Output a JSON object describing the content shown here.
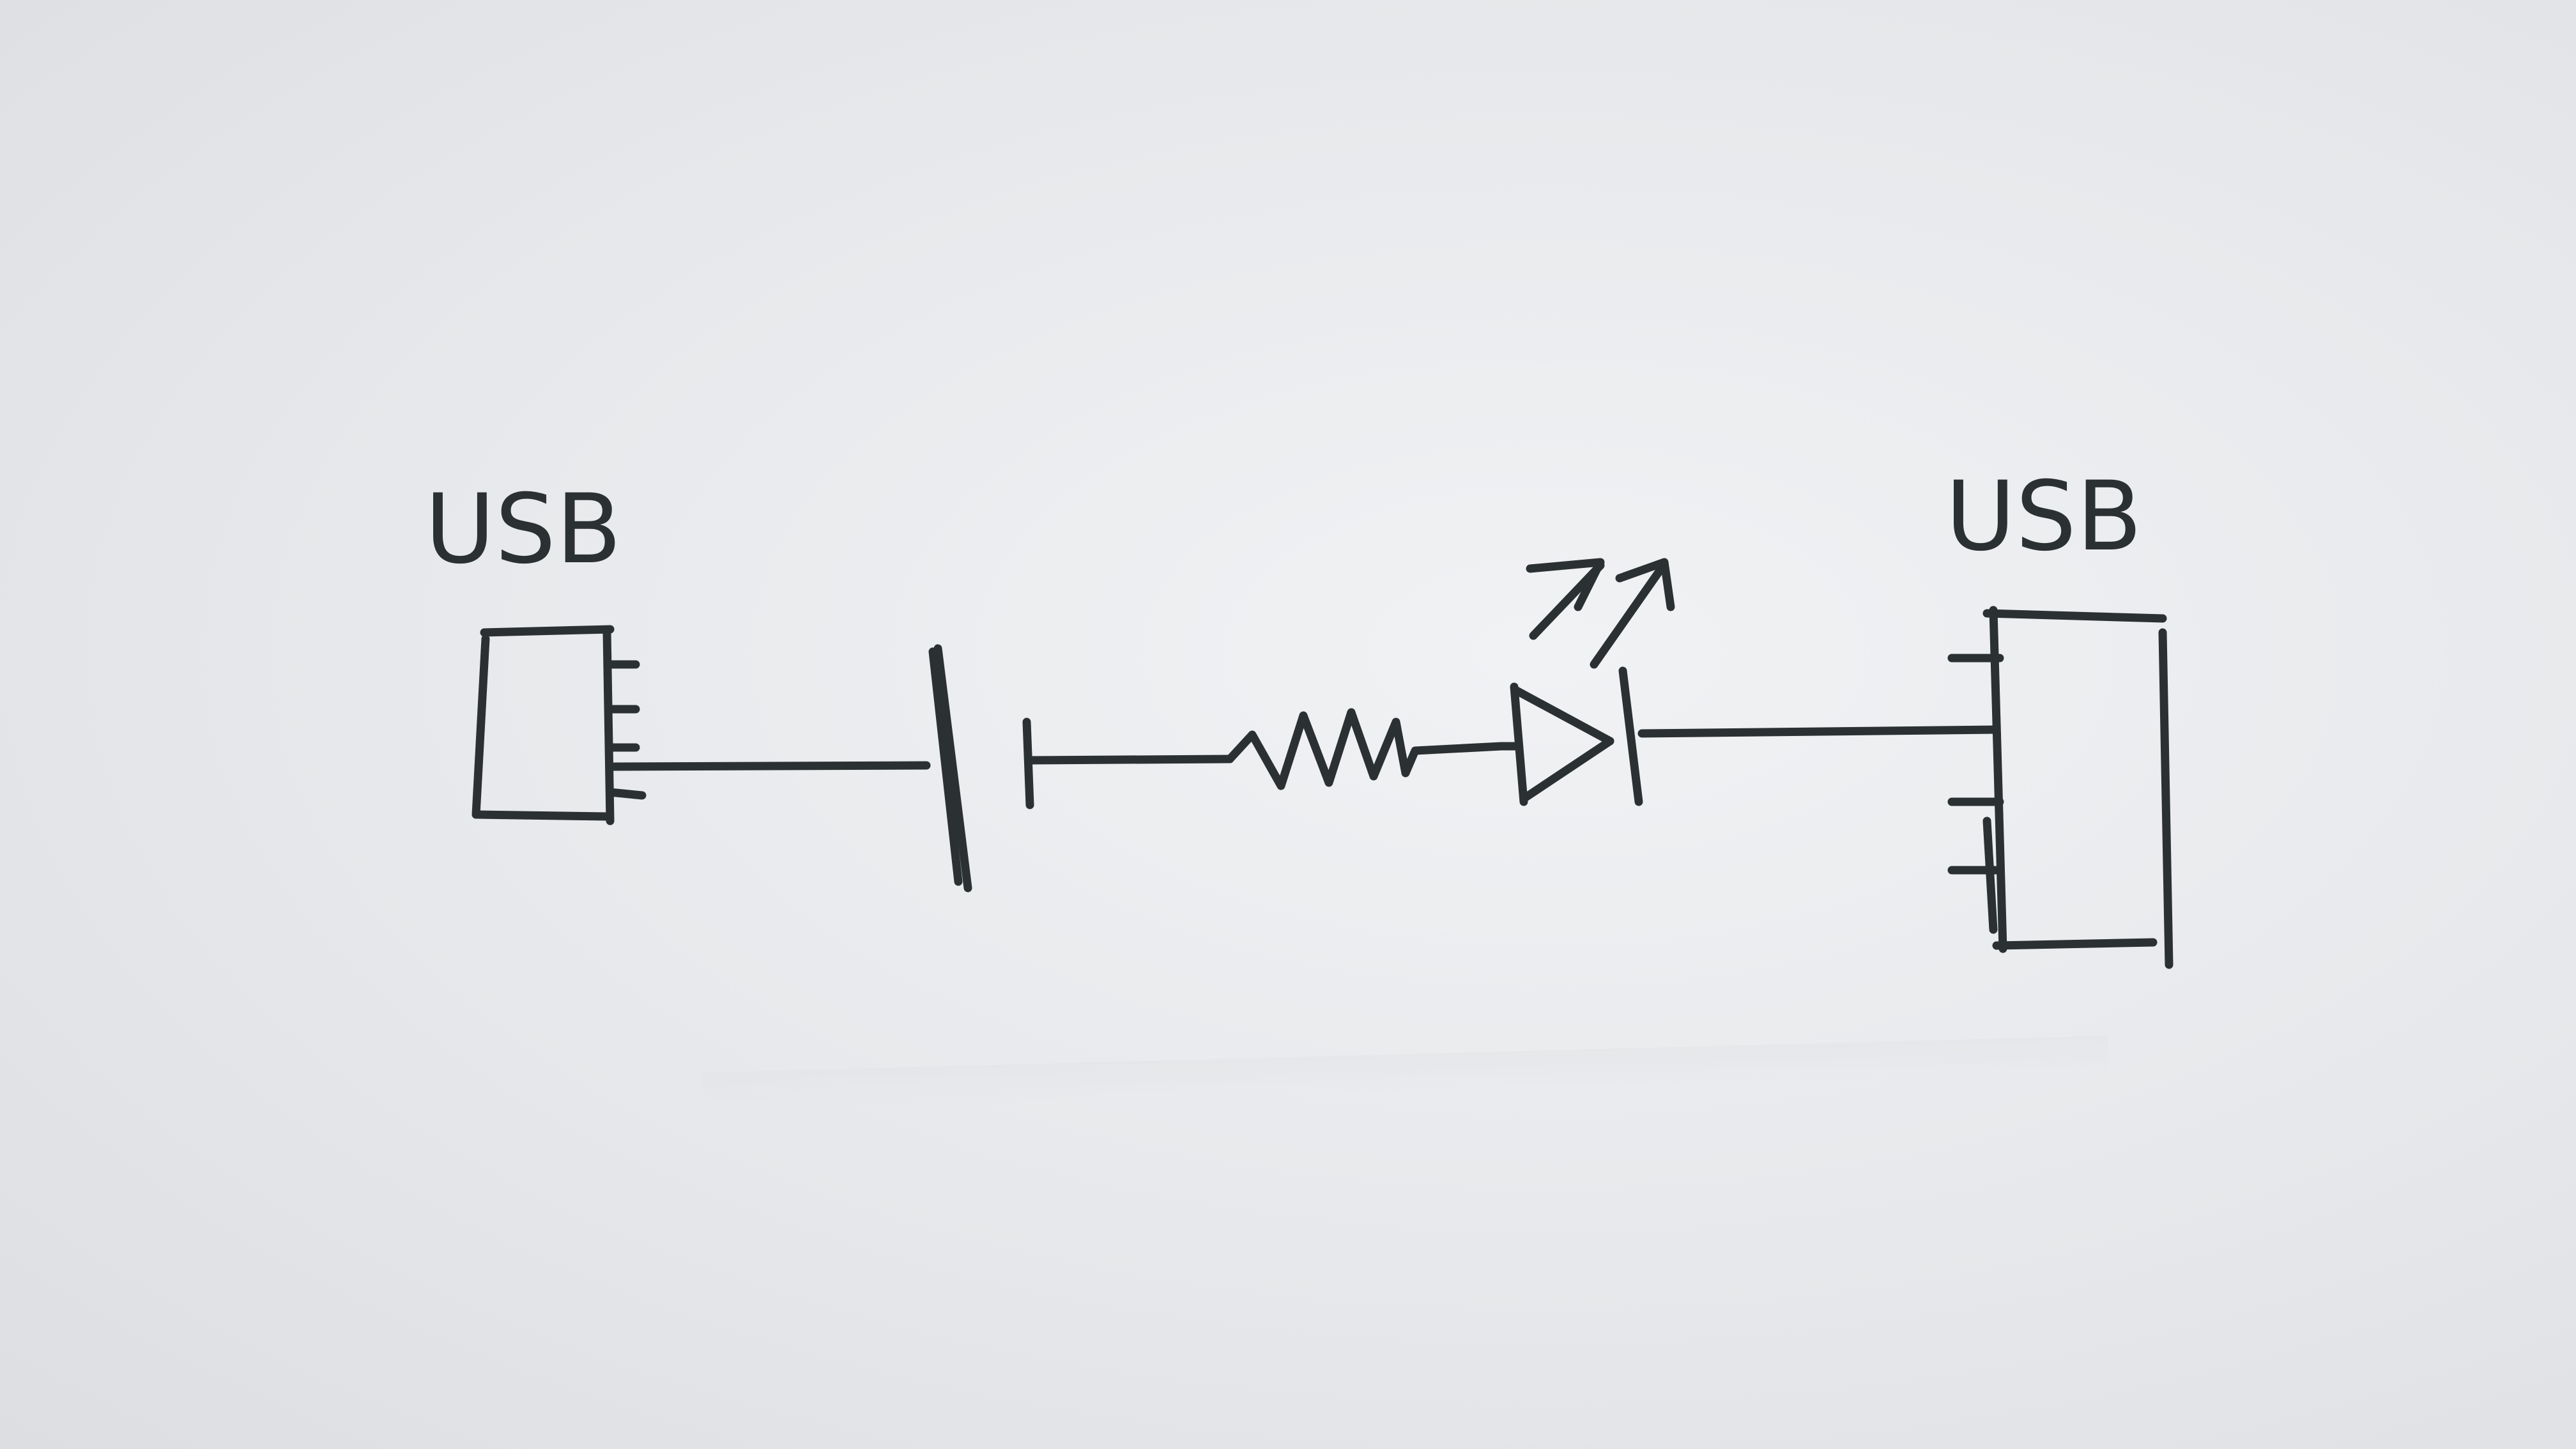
{
  "left_connector": {
    "label": "USB"
  },
  "right_connector": {
    "label": "USB"
  },
  "ink_color": "#2b3133",
  "paper_color": "#e8eaed"
}
